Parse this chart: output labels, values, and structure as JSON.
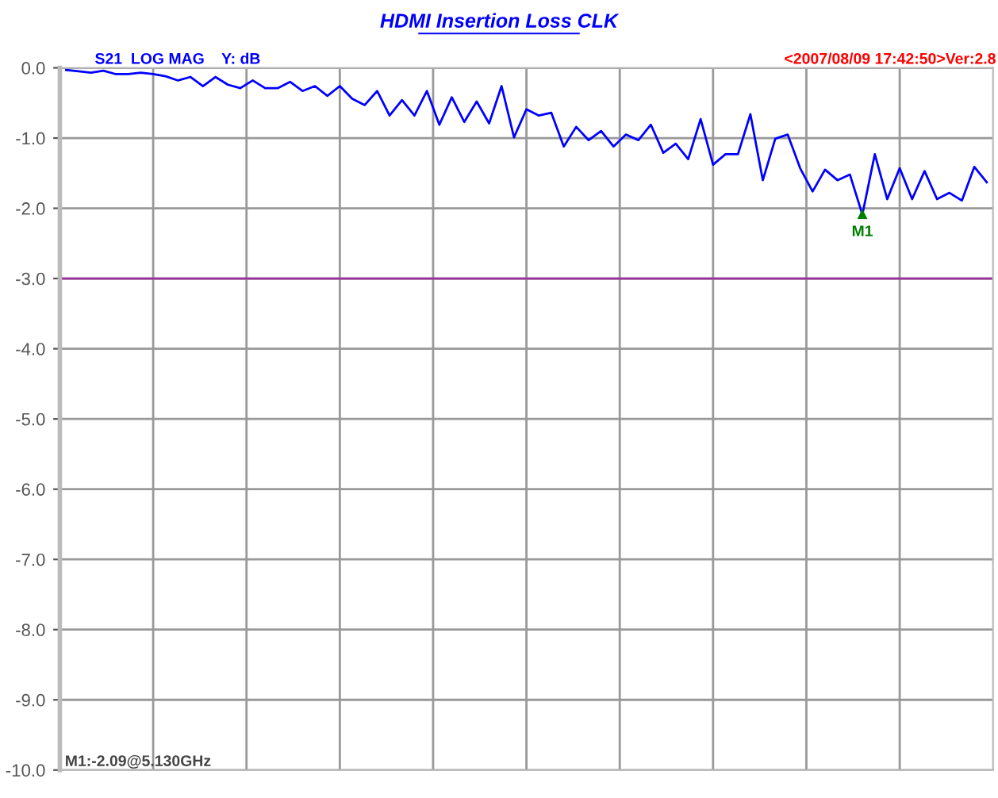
{
  "chart_data": {
    "type": "line",
    "title": "HDMI Insertion Loss CLK",
    "annotations": [
      "S21  LOG MAG    Y: dB",
      "<2007/08/09 17:42:50>Ver:2.8",
      "M1:-2.09@5.130GHz",
      "M1"
    ],
    "categories": [
      null,
      null,
      null,
      null,
      null,
      null,
      null,
      null,
      null,
      null,
      null,
      null,
      null,
      null,
      null,
      null,
      null,
      null,
      null,
      null,
      null,
      null,
      null,
      null,
      null,
      null,
      null,
      null,
      null,
      null,
      null,
      null,
      null,
      null,
      null,
      null,
      null,
      null,
      null,
      null,
      null,
      null,
      null,
      null,
      null,
      null,
      null,
      null,
      null,
      null,
      null,
      null,
      null,
      null,
      null,
      null,
      null,
      null,
      null,
      null,
      null,
      null,
      null,
      null,
      null,
      null,
      null,
      null,
      null,
      null,
      null,
      null,
      null,
      null,
      null
    ],
    "series": [
      {
        "color": "#0000ff",
        "values": [
          -0.03,
          -0.05,
          -0.07,
          -0.04,
          -0.09,
          -0.09,
          -0.07,
          -0.09,
          -0.12,
          -0.18,
          -0.13,
          -0.26,
          -0.13,
          -0.24,
          -0.29,
          -0.18,
          -0.29,
          -0.29,
          -0.2,
          -0.33,
          -0.26,
          -0.4,
          -0.26,
          -0.44,
          -0.53,
          -0.33,
          -0.68,
          -0.46,
          -0.68,
          -0.33,
          -0.81,
          -0.42,
          -0.77,
          -0.48,
          -0.79,
          -0.26,
          -0.99,
          -0.59,
          -0.68,
          -0.64,
          -1.12,
          -0.84,
          -1.03,
          -0.9,
          -1.12,
          -0.95,
          -1.03,
          -0.81,
          -1.21,
          -1.08,
          -1.3,
          -0.73,
          -1.38,
          -1.23,
          -1.23,
          -0.66,
          -1.6,
          -1.01,
          -0.95,
          -1.43,
          -1.76,
          -1.45,
          -1.6,
          -1.52,
          -2.09,
          -1.23,
          -1.87,
          -1.43,
          -1.87,
          -1.47,
          -1.87,
          -1.78,
          -1.89,
          -1.41,
          -1.63
        ]
      }
    ],
    "ylim": [
      -10,
      0
    ],
    "yticks": [
      {
        "value": 0,
        "label": "0.0"
      },
      {
        "value": -1,
        "label": "-1.0"
      },
      {
        "value": -2,
        "label": "-2.0"
      },
      {
        "value": -3,
        "label": "-3.0"
      },
      {
        "value": -4,
        "label": "-4.0"
      },
      {
        "value": -5,
        "label": "-5.0"
      },
      {
        "value": -6,
        "label": "-6.0"
      },
      {
        "value": -7,
        "label": "-7.0"
      },
      {
        "value": -8,
        "label": "-8.0"
      },
      {
        "value": -9,
        "label": "-9.0"
      },
      {
        "value": -10,
        "label": "-10.0"
      }
    ],
    "ref_lines": [
      {
        "axis": "y",
        "value": -3,
        "color": "#993399"
      }
    ],
    "grid": true,
    "line_style": "solid",
    "marker": "none"
  }
}
